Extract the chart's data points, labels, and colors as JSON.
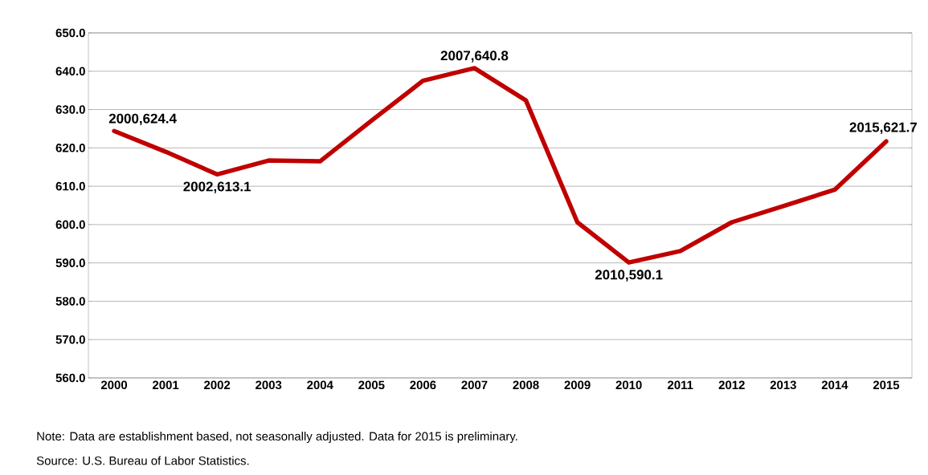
{
  "chart_data": {
    "type": "line",
    "categories": [
      "2000",
      "2001",
      "2002",
      "2003",
      "2004",
      "2005",
      "2006",
      "2007",
      "2008",
      "2009",
      "2010",
      "2011",
      "2012",
      "2013",
      "2014",
      "2015"
    ],
    "series": [
      {
        "color": "#c00000",
        "values": [
          624.4,
          619.0,
          613.1,
          616.7,
          616.5,
          627.1,
          637.5,
          640.8,
          632.4,
          600.6,
          590.1,
          593.1,
          600.6,
          604.8,
          609.1,
          621.7
        ]
      }
    ],
    "ylim": [
      560,
      650
    ],
    "yticks": [
      {
        "value": 560,
        "label": "560.0"
      },
      {
        "value": 570,
        "label": "570.0"
      },
      {
        "value": 580,
        "label": "580.0"
      },
      {
        "value": 590,
        "label": "590.0"
      },
      {
        "value": 600,
        "label": "600.0"
      },
      {
        "value": 610,
        "label": "610.0"
      },
      {
        "value": 620,
        "label": "620.0"
      },
      {
        "value": 630,
        "label": "630.0"
      },
      {
        "value": 640,
        "label": "640.0"
      },
      {
        "value": 650,
        "label": "650.0"
      }
    ],
    "grid": "y",
    "marker": "none",
    "line_style": "solid",
    "annotations": [
      {
        "text": "2000,624.4",
        "x": "2000",
        "y": 624.4
      },
      {
        "text": "2002,613.1",
        "x": "2002",
        "y": 613.1
      },
      {
        "text": "2007,640.8",
        "x": "2007",
        "y": 640.8
      },
      {
        "text": "2010,590.1",
        "x": "2010",
        "y": 590.1
      },
      {
        "text": "2015,621.7",
        "x": "2015",
        "y": 621.7
      },
      "Note: Data are establishment based, not seasonally adjusted. Data for 2015 is preliminary.",
      "Source: U.S. Bureau of Labor Statistics."
    ]
  }
}
